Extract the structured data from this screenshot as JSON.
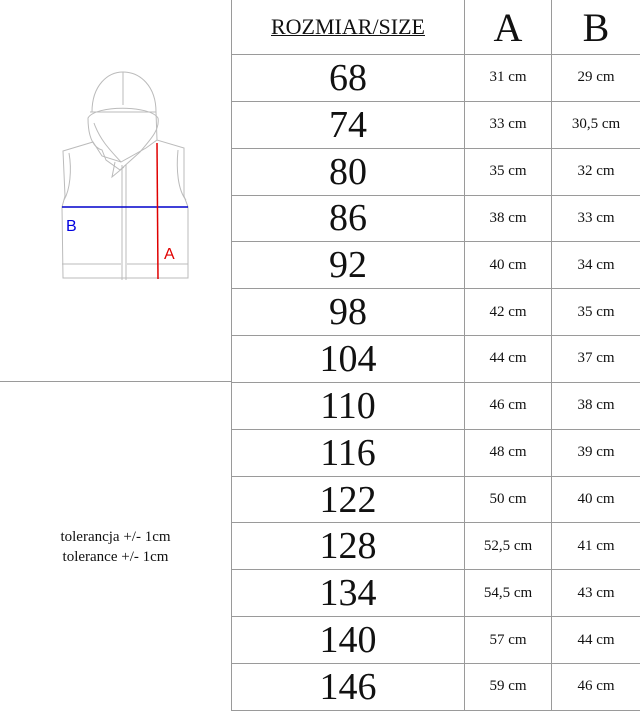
{
  "header": {
    "size": "ROZMIAR/SIZE",
    "a": "A",
    "b": "B"
  },
  "diagram": {
    "label_a": "A",
    "label_b": "B",
    "color_a": "#e00000",
    "color_b": "#0000e0"
  },
  "tolerance": [
    "tolerancja +/- 1cm",
    "tolerance +/- 1cm"
  ],
  "rows": [
    {
      "size": "68",
      "a": "31 cm",
      "b": "29 cm"
    },
    {
      "size": "74",
      "a": "33 cm",
      "b": "30,5 cm"
    },
    {
      "size": "80",
      "a": "35 cm",
      "b": "32 cm"
    },
    {
      "size": "86",
      "a": "38 cm",
      "b": "33 cm"
    },
    {
      "size": "92",
      "a": "40 cm",
      "b": "34 cm"
    },
    {
      "size": "98",
      "a": "42 cm",
      "b": "35 cm"
    },
    {
      "size": "104",
      "a": "44 cm",
      "b": "37 cm"
    },
    {
      "size": "110",
      "a": "46 cm",
      "b": "38 cm"
    },
    {
      "size": "116",
      "a": "48 cm",
      "b": "39 cm"
    },
    {
      "size": "122",
      "a": "50 cm",
      "b": "40 cm"
    },
    {
      "size": "128",
      "a": "52,5 cm",
      "b": "41 cm"
    },
    {
      "size": "134",
      "a": "54,5 cm",
      "b": "43 cm"
    },
    {
      "size": "140",
      "a": "57 cm",
      "b": "44 cm"
    },
    {
      "size": "146",
      "a": "59 cm",
      "b": "46 cm"
    }
  ]
}
